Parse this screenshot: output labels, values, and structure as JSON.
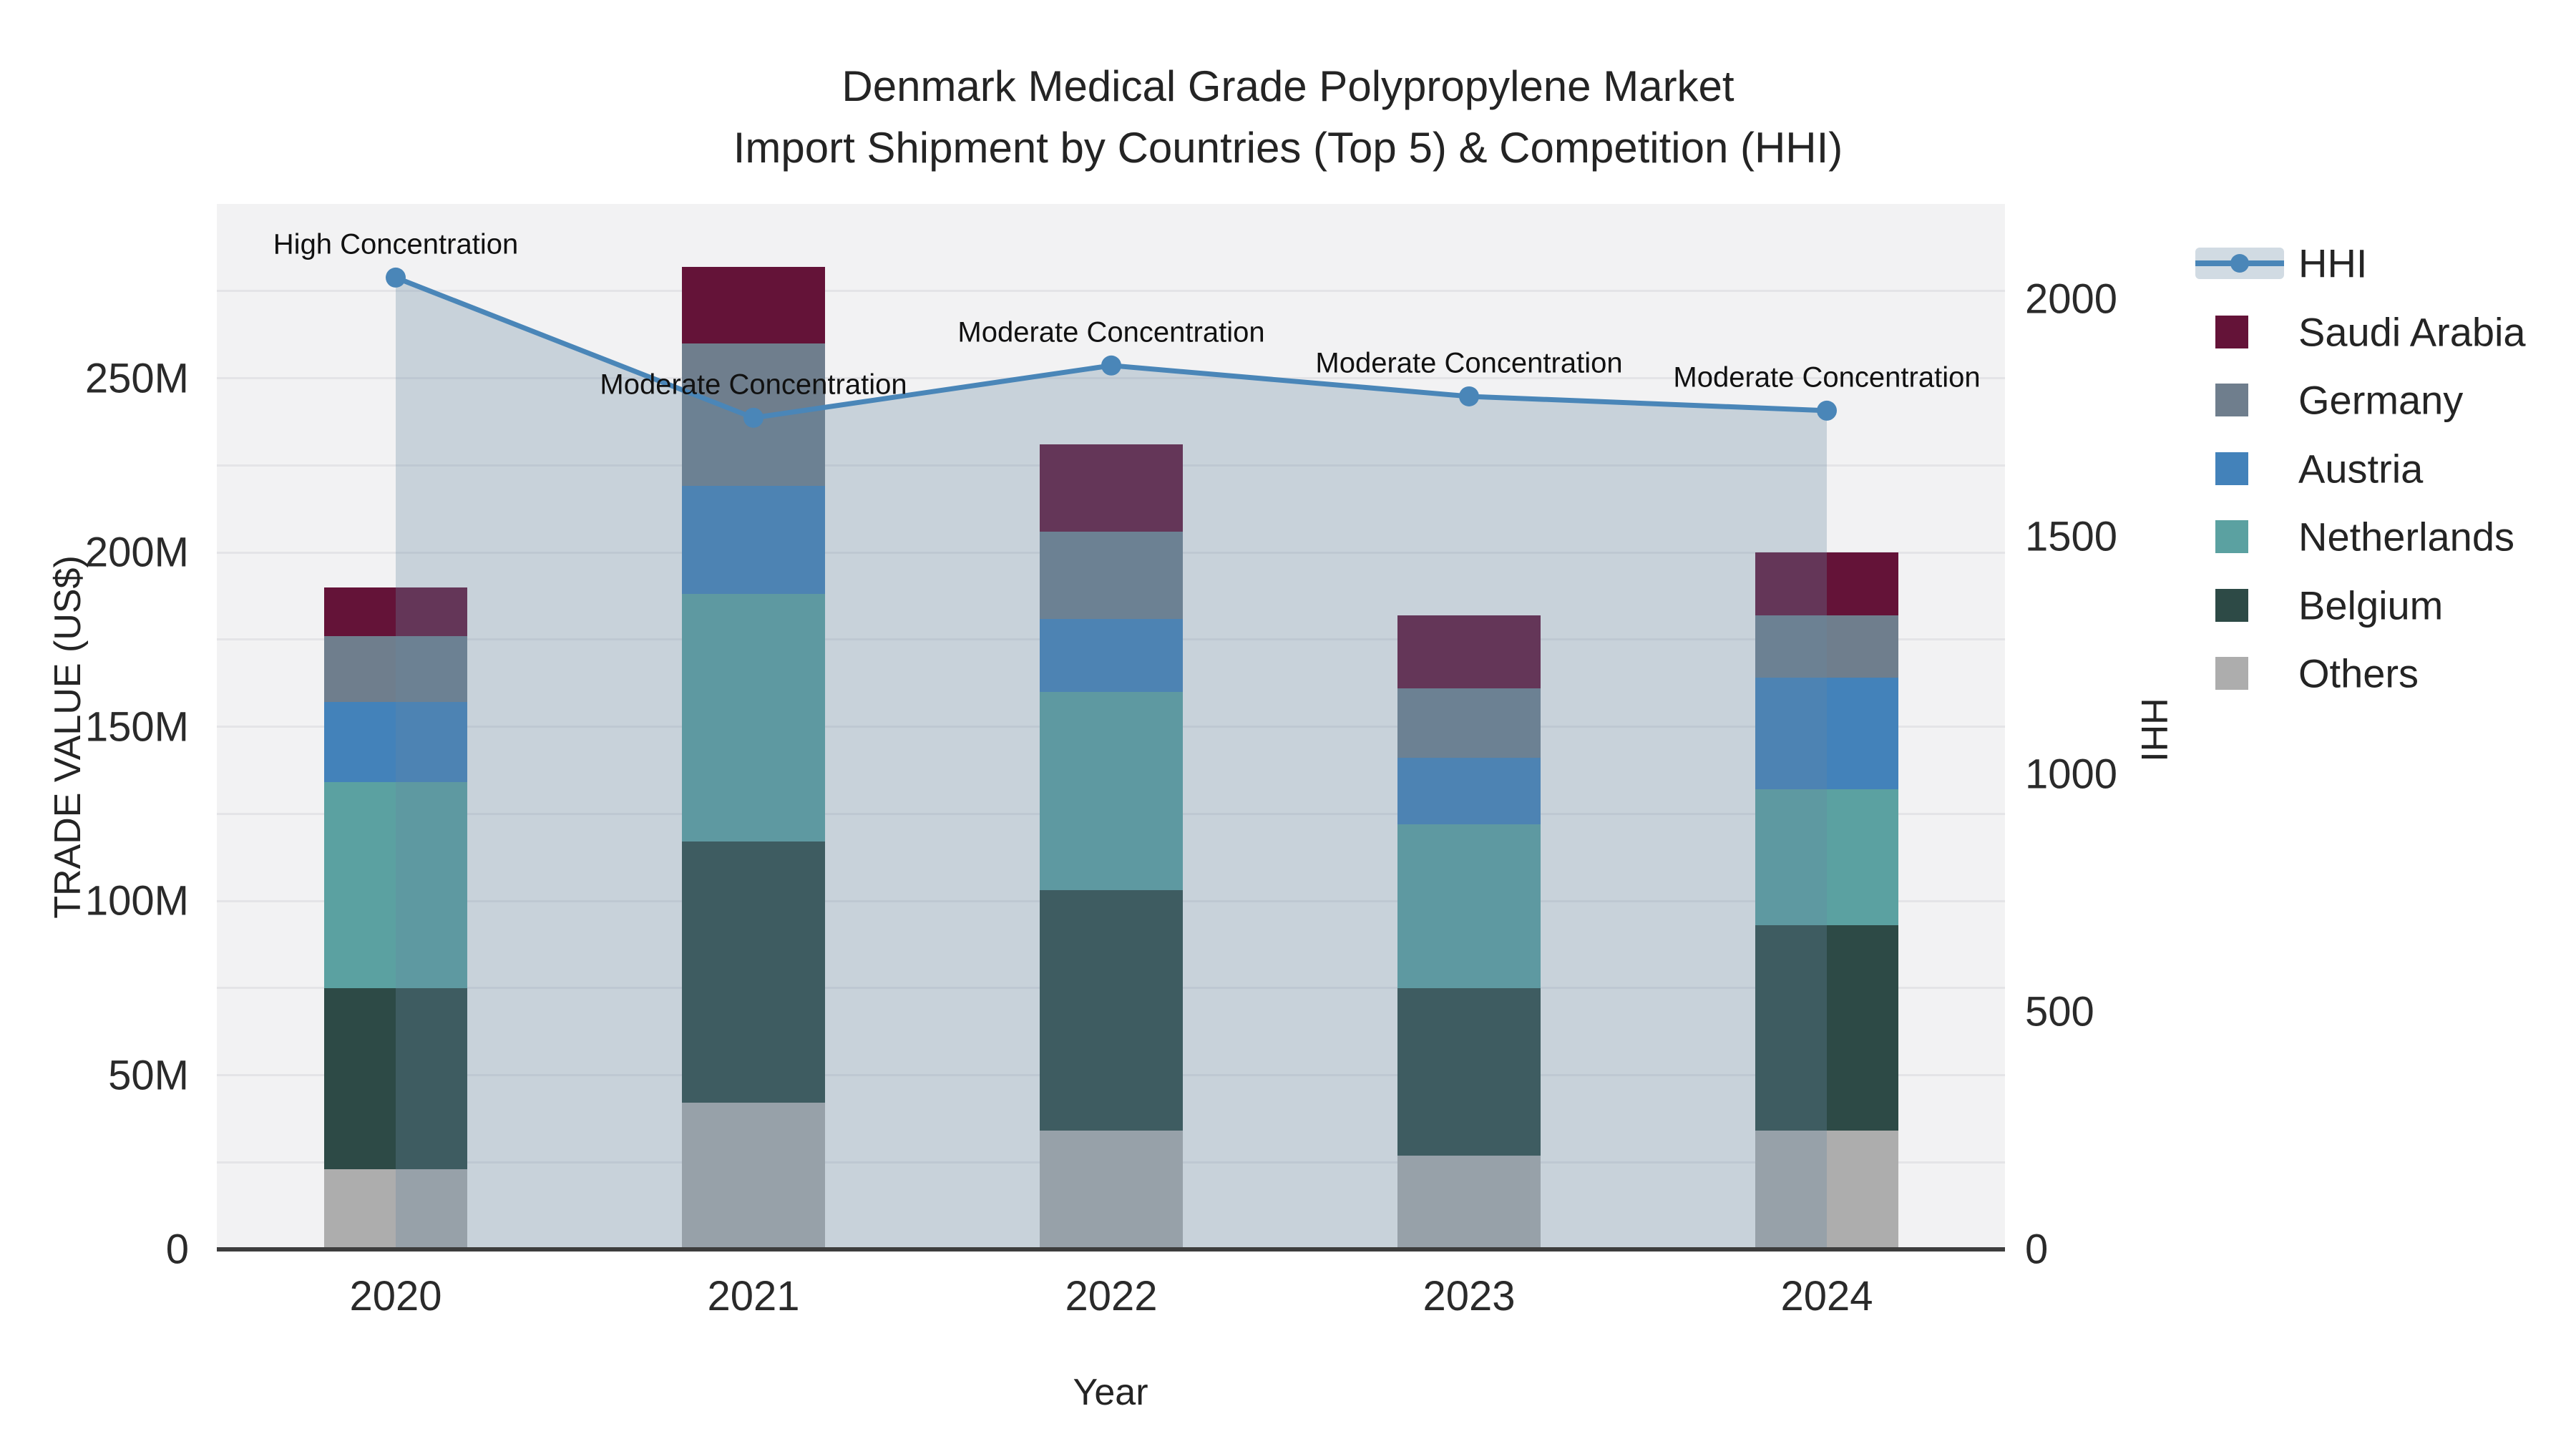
{
  "title": {
    "line1": "Denmark Medical Grade Polypropylene Market",
    "line2": "Import Shipment by Countries (Top 5) & Competition (HHI)"
  },
  "chart_data": {
    "type": "bar-line-combo",
    "title": "Denmark Medical Grade Polypropylene Market — Import Shipment by Countries (Top 5) & Competition (HHI)",
    "x": [
      "2020",
      "2021",
      "2022",
      "2023",
      "2024"
    ],
    "xlabel": "Year",
    "y_left": {
      "label": "TRADE VALUE (US$)",
      "unit": "million US$",
      "min": 0,
      "max": 300,
      "ticks": [
        {
          "v": 0,
          "t": "0"
        },
        {
          "v": 50,
          "t": "50M"
        },
        {
          "v": 100,
          "t": "100M"
        },
        {
          "v": 150,
          "t": "150M"
        },
        {
          "v": 200,
          "t": "200M"
        },
        {
          "v": 250,
          "t": "250M"
        }
      ],
      "gridline_step": 25
    },
    "y_right": {
      "label": "HHI",
      "min": 0,
      "max": 2200,
      "ticks": [
        {
          "v": 0,
          "t": "0"
        },
        {
          "v": 500,
          "t": "500"
        },
        {
          "v": 1000,
          "t": "1000"
        },
        {
          "v": 1500,
          "t": "1500"
        },
        {
          "v": 2000,
          "t": "2000"
        }
      ]
    },
    "bar_series_bottom_to_top": [
      {
        "name": "Others",
        "color": "#ADADAD",
        "values": [
          23,
          42,
          34,
          27,
          34
        ]
      },
      {
        "name": "Belgium",
        "color": "#2D4A46",
        "values": [
          52,
          75,
          69,
          48,
          59
        ]
      },
      {
        "name": "Netherlands",
        "color": "#5BA1A1",
        "values": [
          59,
          71,
          57,
          47,
          39
        ]
      },
      {
        "name": "Austria",
        "color": "#4382BA",
        "values": [
          23,
          31,
          21,
          19,
          32
        ]
      },
      {
        "name": "Germany",
        "color": "#6F7E8D",
        "values": [
          19,
          41,
          25,
          20,
          18
        ]
      },
      {
        "name": "Saudi Arabia",
        "color": "#641338",
        "values": [
          14,
          22,
          25,
          21,
          18
        ]
      }
    ],
    "bar_totals": [
      190,
      282,
      231,
      182,
      200
    ],
    "line_series": {
      "name": "HHI",
      "color": "#4A86B8",
      "area_fill": "rgba(104,135,161,0.30)",
      "values": [
        2045,
        1750,
        1860,
        1795,
        1765
      ]
    },
    "annotations": [
      {
        "year": "2020",
        "text": "High Concentration"
      },
      {
        "year": "2021",
        "text": "Moderate Concentration"
      },
      {
        "year": "2022",
        "text": "Moderate Concentration"
      },
      {
        "year": "2023",
        "text": "Moderate Concentration"
      },
      {
        "year": "2024",
        "text": "Moderate Concentration"
      }
    ],
    "legend_position": "right",
    "grid": true
  },
  "legend": {
    "items": [
      {
        "label": "HHI",
        "type": "line",
        "color": "#4A86B8"
      },
      {
        "label": "Saudi Arabia",
        "type": "square",
        "color": "#641338"
      },
      {
        "label": "Germany",
        "type": "square",
        "color": "#6F7E8D"
      },
      {
        "label": "Austria",
        "type": "square",
        "color": "#4382BA"
      },
      {
        "label": "Netherlands",
        "type": "square",
        "color": "#5BA1A1"
      },
      {
        "label": "Belgium",
        "type": "square",
        "color": "#2D4A46"
      },
      {
        "label": "Others",
        "type": "square",
        "color": "#ADADAD"
      }
    ]
  },
  "colors": {
    "plot_background": "#F2F2F3",
    "gridline": "#E4E4E7",
    "axis_line": "#3D3D3D",
    "text": "#242424"
  }
}
